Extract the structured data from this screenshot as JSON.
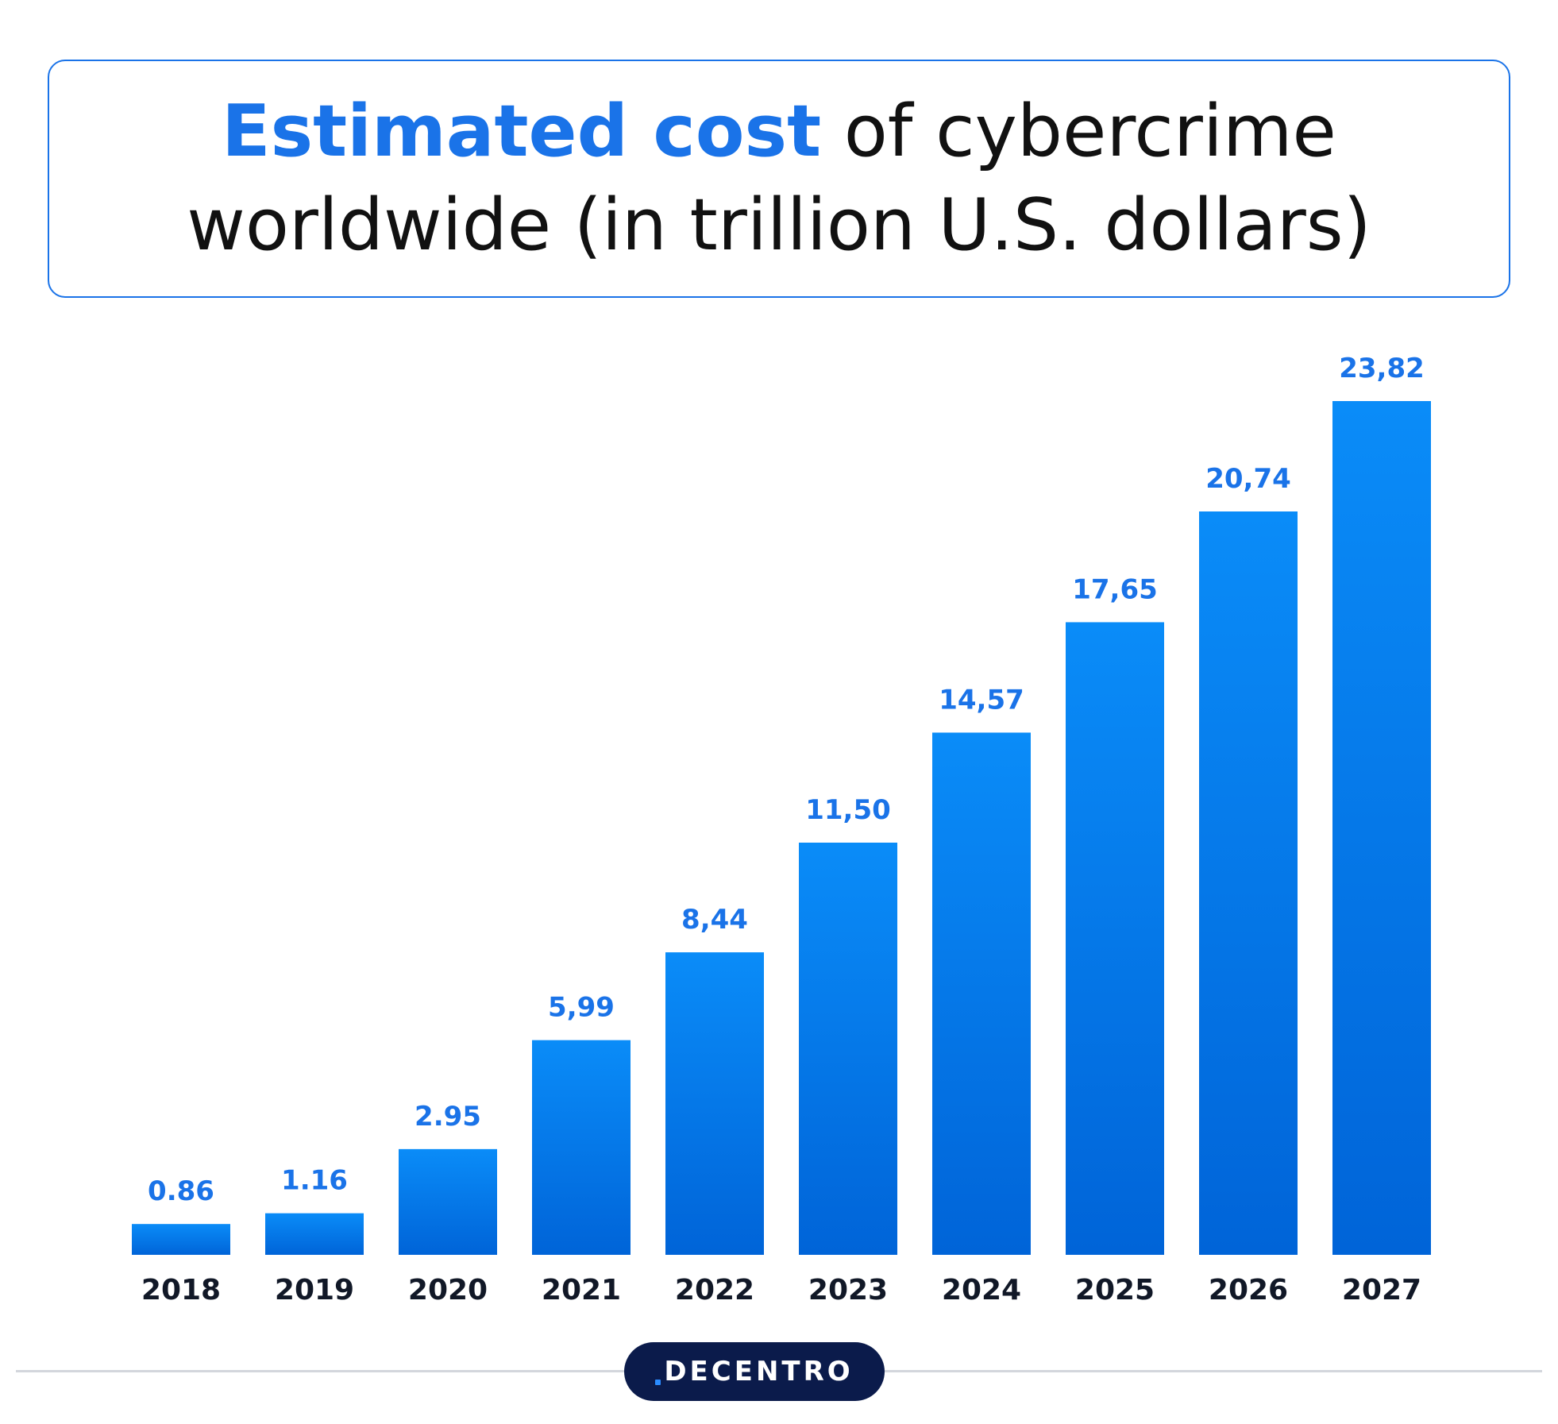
{
  "title": {
    "accent": "Estimated cost",
    "rest": " of cybercrime",
    "line2": "worldwide (in trillion U.S. dollars)"
  },
  "colors": {
    "accent": "#1a73e8",
    "bar_top": "#0a8cf8",
    "bar_bottom": "#0064d8",
    "label": "#1a73e8",
    "year": "#111827",
    "logo_bg": "#0b1b4b"
  },
  "chart_data": {
    "type": "bar",
    "categories": [
      "2018",
      "2019",
      "2020",
      "2021",
      "2022",
      "2023",
      "2024",
      "2025",
      "2026",
      "2027"
    ],
    "values": [
      0.86,
      1.16,
      2.95,
      5.99,
      8.44,
      11.5,
      14.57,
      17.65,
      20.74,
      23.82
    ],
    "data_labels": [
      "0.86",
      "1.16",
      "2.95",
      "5,99",
      "8,44",
      "11,50",
      "14,57",
      "17,65",
      "20,74",
      "23,82"
    ],
    "title": "Estimated cost of cybercrime worldwide (in trillion U.S. dollars)",
    "xlabel": "",
    "ylabel": "",
    "ylim": [
      0,
      24
    ],
    "grid": false,
    "legend": "none"
  },
  "brand": {
    "name": "DECENTRO"
  }
}
